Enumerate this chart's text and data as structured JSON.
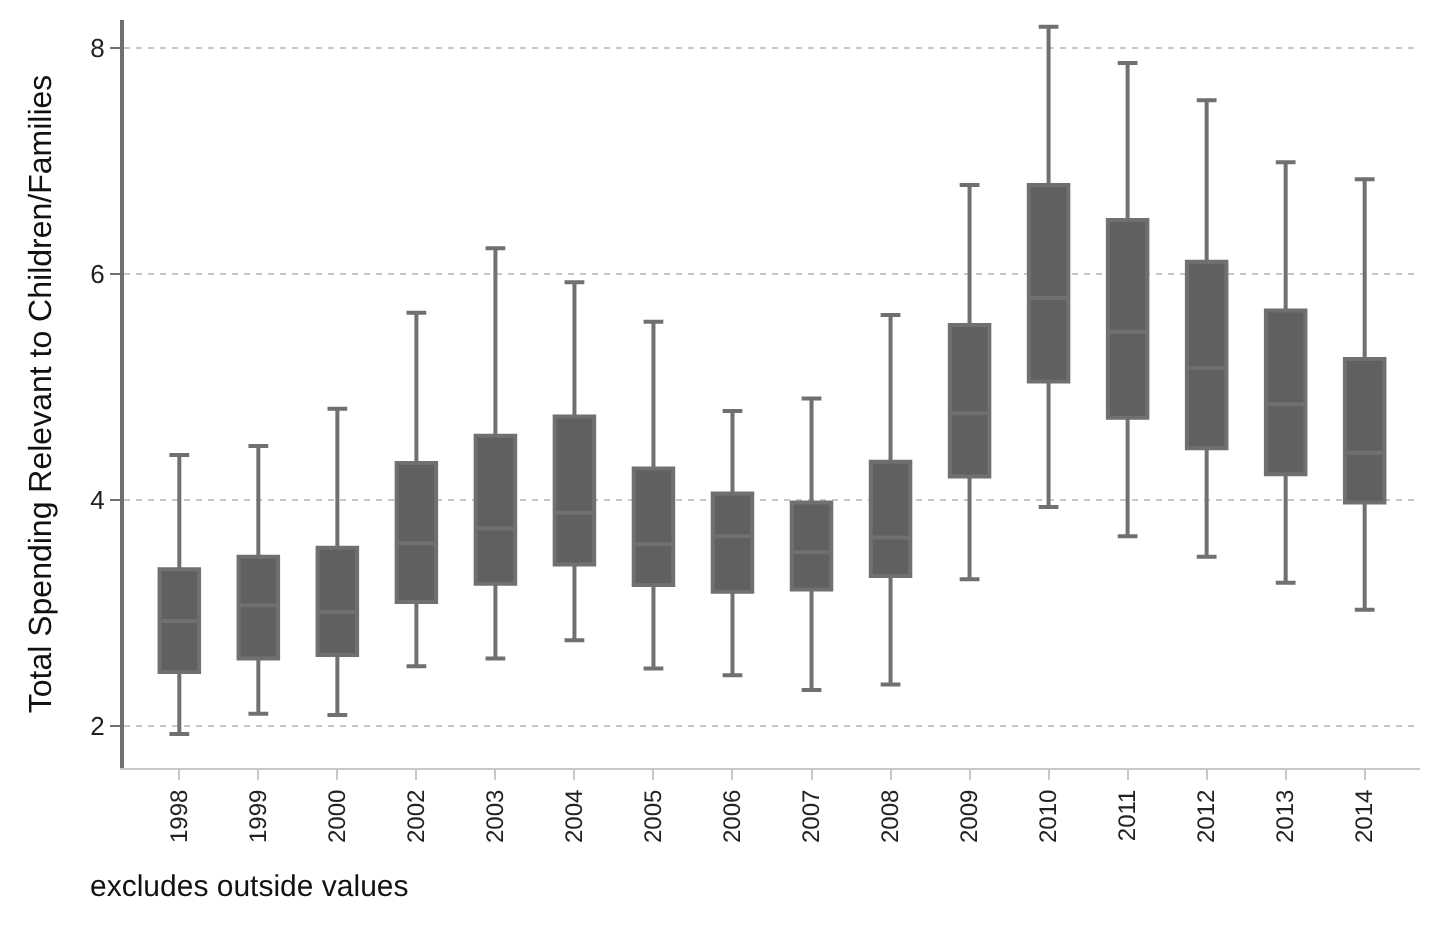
{
  "chart_data": {
    "type": "box",
    "ylabel": "Total Spending Relevant to Children/Families",
    "categories": [
      "1998",
      "1999",
      "2000",
      "2002",
      "2003",
      "2004",
      "2005",
      "2006",
      "2007",
      "2008",
      "2009",
      "2010",
      "2011",
      "2012",
      "2013",
      "2014"
    ],
    "boxes": [
      {
        "low": 1.93,
        "q1": 2.48,
        "median": 2.93,
        "q3": 3.39,
        "high": 4.4
      },
      {
        "low": 2.11,
        "q1": 2.6,
        "median": 3.07,
        "q3": 3.5,
        "high": 4.48
      },
      {
        "low": 2.1,
        "q1": 2.63,
        "median": 3.01,
        "q3": 3.58,
        "high": 4.81
      },
      {
        "low": 2.53,
        "q1": 3.1,
        "median": 3.62,
        "q3": 4.33,
        "high": 5.66
      },
      {
        "low": 2.6,
        "q1": 3.26,
        "median": 3.75,
        "q3": 4.57,
        "high": 6.23
      },
      {
        "low": 2.76,
        "q1": 3.43,
        "median": 3.89,
        "q3": 4.74,
        "high": 5.93
      },
      {
        "low": 2.51,
        "q1": 3.25,
        "median": 3.61,
        "q3": 4.28,
        "high": 5.58
      },
      {
        "low": 2.45,
        "q1": 3.19,
        "median": 3.68,
        "q3": 4.06,
        "high": 4.79
      },
      {
        "low": 2.32,
        "q1": 3.21,
        "median": 3.54,
        "q3": 3.98,
        "high": 4.9
      },
      {
        "low": 2.37,
        "q1": 3.33,
        "median": 3.67,
        "q3": 4.34,
        "high": 5.64
      },
      {
        "low": 3.3,
        "q1": 4.21,
        "median": 4.77,
        "q3": 5.55,
        "high": 6.79
      },
      {
        "low": 3.94,
        "q1": 5.05,
        "median": 5.79,
        "q3": 6.79,
        "high": 8.19
      },
      {
        "low": 3.68,
        "q1": 4.73,
        "median": 5.49,
        "q3": 6.48,
        "high": 7.87
      },
      {
        "low": 3.5,
        "q1": 4.46,
        "median": 5.17,
        "q3": 6.11,
        "high": 7.54
      },
      {
        "low": 3.27,
        "q1": 4.23,
        "median": 4.85,
        "q3": 5.68,
        "high": 6.99
      },
      {
        "low": 3.03,
        "q1": 3.98,
        "median": 4.42,
        "q3": 5.25,
        "high": 6.84
      }
    ],
    "color": "#606060",
    "ylim": [
      1.63,
      8.25
    ],
    "yticks": [
      2,
      4,
      6,
      8
    ],
    "grid": "y",
    "legend": false,
    "annotations": [
      "excludes outside values"
    ]
  }
}
